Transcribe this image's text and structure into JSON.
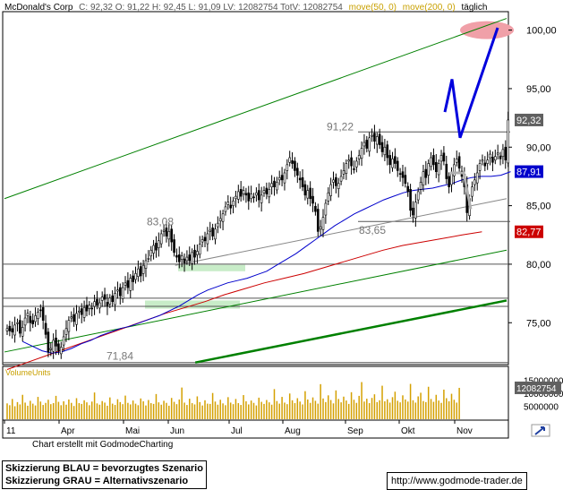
{
  "header": {
    "instrument": "McDonald's Corp",
    "quote": "C: 92,32  O: 91,22 H: 92,45 L: 91,09 LV: 12082754 TotV: 12082754",
    "ma50_label": "move(50, 0)",
    "ma200_label": "move(200, 0)",
    "timeframe": "täglich"
  },
  "footer": {
    "credit": "Chart erstellt mit GodmodeCharting",
    "note_blue": "Skizzierung BLAU = bevorzugtes Szenario",
    "note_gray": "Skizzierung GRAU = Alternativszenario",
    "url": "http://www.godmode-trader.de"
  },
  "colors": {
    "price": "#000000",
    "ma50": "#0000cc",
    "ma200": "#cc0000",
    "trend_channel": "#008000",
    "scenario_blue": "#0000dd",
    "scenario_gray": "#b0b0b0",
    "zone": "#c8ecc8",
    "target": "#f0a0a8",
    "volume": "#d4a000"
  },
  "chart_data": [
    {
      "type": "candlestick",
      "title": "McDonald's Corp",
      "timeframe": "täglich",
      "y_axis_side": "right",
      "ylim": [
        71.5,
        101.5
      ],
      "yticks": [
        "100,00",
        "95,00",
        "90,00",
        "85,00",
        "80,00",
        "75,00"
      ],
      "xticks": [
        "11",
        "Apr",
        "Mai",
        "Jun",
        "Jul",
        "Aug",
        "Sep",
        "Okt",
        "Nov"
      ],
      "value_markers": [
        {
          "label": "92,32",
          "value": 92.32,
          "color": "#606060"
        },
        {
          "label": "87,91",
          "value": 87.91,
          "color": "#0000cc"
        },
        {
          "label": "82,77",
          "value": 82.77,
          "color": "#cc0000"
        }
      ],
      "annotations": [
        {
          "text": "91,22",
          "value": 91.22
        },
        {
          "text": "83,08",
          "value": 83.08
        },
        {
          "text": "83,65",
          "value": 83.65
        },
        {
          "text": "71,84",
          "value": 71.84
        }
      ],
      "horizontal_lines": [
        91.3,
        83.65,
        80.0,
        77.1,
        76.4,
        71.6
      ],
      "close_series": [
        74.5,
        74.3,
        74.2,
        74.8,
        75.0,
        74.1,
        74.6,
        75.4,
        75.8,
        75.0,
        74.9,
        75.6,
        75.9,
        76.1,
        75.2,
        74.0,
        72.5,
        72.8,
        73.5,
        73.0,
        72.6,
        72.9,
        73.8,
        74.5,
        75.2,
        75.5,
        75.1,
        75.8,
        76.0,
        75.7,
        76.3,
        76.0,
        76.5,
        76.2,
        76.8,
        76.5,
        76.7,
        77.2,
        77.0,
        76.4,
        77.1,
        76.8,
        77.5,
        77.8,
        77.3,
        78.0,
        78.4,
        78.0,
        78.8,
        78.5,
        79.2,
        79.6,
        79.0,
        79.9,
        80.3,
        80.5,
        81.2,
        81.6,
        81.2,
        82.0,
        82.6,
        82.9,
        82.4,
        82.8,
        81.9,
        81.0,
        80.6,
        80.2,
        80.7,
        80.1,
        80.6,
        80.3,
        81.0,
        80.6,
        81.1,
        81.7,
        82.1,
        82.0,
        82.6,
        82.9,
        82.4,
        83.0,
        83.5,
        83.9,
        84.3,
        84.9,
        85.3,
        84.8,
        85.4,
        85.8,
        86.2,
        85.8,
        86.3,
        85.9,
        85.4,
        86.0,
        85.7,
        86.1,
        85.5,
        85.9,
        86.3,
        86.0,
        86.4,
        86.9,
        86.6,
        87.0,
        87.4,
        87.2,
        87.8,
        88.5,
        89.1,
        88.6,
        88.0,
        87.6,
        87.2,
        86.6,
        85.9,
        86.3,
        85.6,
        85.2,
        84.5,
        82.8,
        83.2,
        84.0,
        85.2,
        86.1,
        86.8,
        87.2,
        86.7,
        86.9,
        87.5,
        88.0,
        88.6,
        88.9,
        88.4,
        88.1,
        88.8,
        89.3,
        89.9,
        90.4,
        89.9,
        90.8,
        91.0,
        90.5,
        90.9,
        90.2,
        89.6,
        90.0,
        89.1,
        88.5,
        89.0,
        88.6,
        88.0,
        87.7,
        87.4,
        86.9,
        86.2,
        84.6,
        84.2,
        85.3,
        86.2,
        87.0,
        87.9,
        87.4,
        88.6,
        89.1,
        88.5,
        87.9,
        88.6,
        89.3,
        88.8,
        87.3,
        86.6,
        87.8,
        88.5,
        89.0,
        88.2,
        87.5,
        86.6,
        84.4,
        85.6,
        86.6,
        87.2,
        87.8,
        88.6,
        88.9,
        88.4,
        88.9,
        89.4,
        88.7,
        89.2,
        89.5,
        89.0,
        89.8,
        88.9,
        92.32
      ],
      "ma50_series": [
        73.4,
        73.0,
        72.6,
        72.4,
        72.5,
        72.8,
        73.2,
        73.5,
        73.9,
        74.2,
        74.5,
        74.7,
        75.0,
        75.3,
        75.6,
        76.0,
        76.4,
        76.9,
        77.4,
        77.8,
        78.1,
        78.4,
        78.6,
        78.8,
        79.1,
        79.4,
        79.9,
        80.4,
        80.9,
        81.5,
        82.1,
        82.7,
        83.3,
        83.8,
        84.3,
        84.7,
        85.1,
        85.5,
        85.8,
        86.1,
        86.3,
        86.4,
        86.5,
        86.7,
        86.9,
        87.2,
        87.4,
        87.5,
        87.5,
        87.6,
        87.91
      ],
      "ma200_series": [
        71.0,
        71.6,
        72.2,
        72.8,
        73.4,
        74.0,
        74.6,
        75.2,
        75.8,
        76.3,
        76.8,
        77.4,
        77.9,
        78.4,
        78.8,
        79.2,
        79.7,
        80.2,
        80.7,
        81.2,
        81.6,
        81.9,
        82.2,
        82.5,
        82.77
      ],
      "trendlines": [
        {
          "name": "",
          "color": "#008000",
          "from": [
            0,
            85.6
          ],
          "to": [
            1,
            101.0
          ]
        },
        {
          "name": "",
          "color": "#008000",
          "from": [
            0,
            72.5
          ],
          "to": [
            1,
            81.2
          ]
        },
        {
          "name": "",
          "color": "#008000",
          "from": [
            0.38,
            71.6
          ],
          "to": [
            1,
            76.9
          ]
        },
        {
          "name": "",
          "color": "#888888",
          "from": [
            0.34,
            79.9
          ],
          "to": [
            1,
            85.6
          ]
        }
      ],
      "scenarios": [
        {
          "name": "bevorzugtes Szenario",
          "color": "#0000dd",
          "points": [
            93.0,
            95.8,
            90.8,
            100.2
          ]
        },
        {
          "name": "Alternativszenario",
          "color": "#b0b0b0",
          "points": [
            87.8,
            87.8,
            84.7
          ]
        }
      ]
    },
    {
      "type": "bar",
      "title": "VolumeUnits",
      "ylim": [
        0,
        20000000
      ],
      "yticks": [
        "15000000",
        "10000000",
        "5000000"
      ],
      "value_marker": {
        "label": "12082754",
        "value": 12082754
      },
      "values": [
        6.1,
        5.4,
        7.8,
        5.0,
        6.6,
        5.7,
        9.4,
        6.4,
        5.2,
        7.1,
        6.0,
        5.3,
        8.6,
        6.8,
        5.5,
        6.3,
        7.5,
        5.8,
        6.2,
        9.0,
        6.7,
        5.4,
        6.9,
        5.6,
        7.6,
        6.3,
        5.1,
        8.1,
        6.2,
        5.9,
        7.3,
        6.5,
        5.4,
        6.8,
        10.3,
        6.1,
        5.6,
        7.0,
        6.4,
        5.2,
        8.4,
        6.0,
        5.5,
        7.7,
        6.6,
        5.8,
        9.1,
        6.3,
        5.7,
        7.2,
        6.0,
        5.4,
        8.0,
        6.9,
        5.3,
        7.4,
        6.2,
        5.9,
        9.7,
        6.5,
        5.6,
        7.1,
        6.3,
        5.2,
        8.2,
        6.7,
        5.8,
        7.6,
        12.2,
        6.4,
        5.5,
        7.9,
        6.2,
        5.7,
        8.8,
        6.6,
        5.3,
        7.3,
        6.0,
        5.9,
        10.1,
        6.8,
        5.6,
        7.5,
        6.1,
        5.4,
        8.5,
        6.4,
        5.8,
        7.8,
        6.2,
        5.5,
        9.3,
        6.9,
        5.7,
        7.2,
        6.3,
        5.3,
        8.3,
        6.7,
        5.9,
        7.4,
        6.5,
        5.6,
        11.6,
        7.0,
        6.0,
        8.6,
        6.4,
        5.8,
        9.9,
        7.3,
        6.2,
        8.1,
        6.8,
        5.7,
        10.8,
        7.6,
        6.3,
        8.4,
        7.1,
        6.0,
        13.5,
        8.0,
        6.6,
        9.2,
        7.4,
        6.1,
        11.1,
        7.8,
        6.5,
        8.7,
        7.2,
        5.9,
        10.4,
        7.5,
        6.3,
        9.0,
        14.3,
        6.8,
        7.9,
        6.2,
        8.2,
        9.6,
        6.6,
        7.3,
        12.9,
        6.9,
        7.7,
        6.4,
        8.5,
        10.6,
        7.1,
        6.5,
        9.2,
        7.6,
        6.8,
        13.6,
        7.3,
        6.4,
        8.8,
        10.2,
        7.0,
        6.6,
        12.5,
        7.8,
        6.7,
        9.4,
        7.2,
        6.3,
        11.4,
        8.1,
        6.9,
        9.8,
        7.5,
        6.4,
        12.08
      ]
    }
  ]
}
